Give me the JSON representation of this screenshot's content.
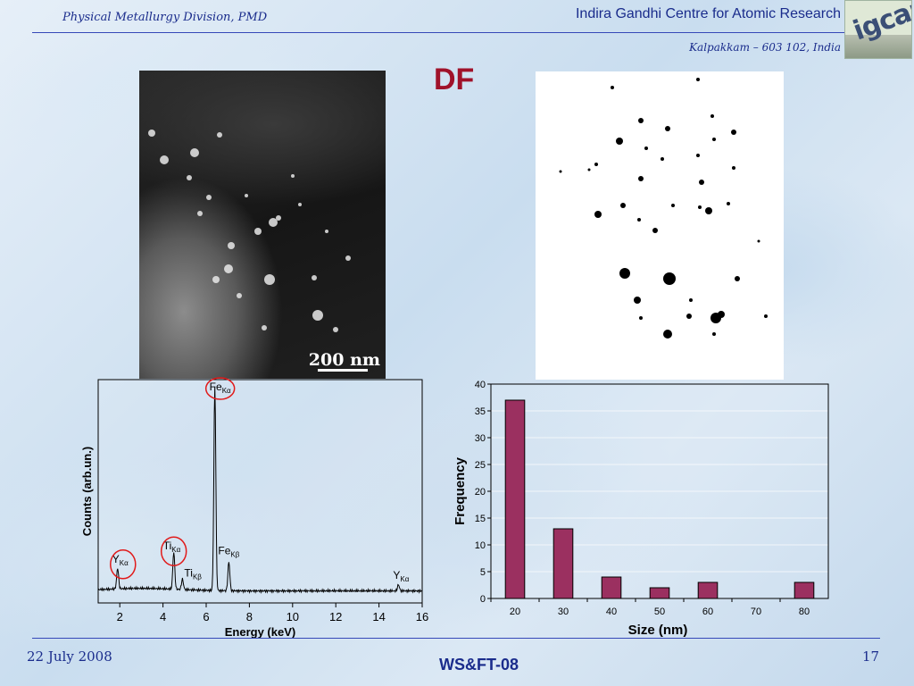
{
  "header": {
    "division": "Physical Metallurgy Division, PMD",
    "institute": "Indira Gandhi Centre for Atomic Research",
    "location": "Kalpakkam – 603 102, India",
    "logo_text": "igcar"
  },
  "slide": {
    "title": "DF",
    "tem_scale_label": "200 nm"
  },
  "footer": {
    "date": "22 July 2008",
    "event": "WS&FT-08",
    "page": "17"
  },
  "colors": {
    "title": "#a0122a",
    "header_text": "#1a2c8c",
    "bar_fill": "#9b3060",
    "highlight_circle": "#e11a1a"
  },
  "chart_data": [
    {
      "type": "line",
      "xlabel": "Energy (keV)",
      "ylabel": "Counts (arb.un.)",
      "xlim": [
        1,
        16
      ],
      "x_ticks": [
        2,
        4,
        6,
        8,
        10,
        12,
        14,
        16
      ],
      "grid": false,
      "peaks": [
        {
          "element": "Y",
          "line": "Kα",
          "energy": 1.9,
          "height": 0.1,
          "circled": true
        },
        {
          "element": "Ti",
          "line": "Kα",
          "energy": 4.5,
          "height": 0.18,
          "circled": true
        },
        {
          "element": "Ti",
          "line": "Kβ",
          "energy": 4.9,
          "height": 0.05,
          "circled": false
        },
        {
          "element": "Fe",
          "line": "Kα",
          "energy": 6.4,
          "height": 1.0,
          "circled": true
        },
        {
          "element": "Fe",
          "line": "Kβ",
          "energy": 7.05,
          "height": 0.14,
          "circled": false
        },
        {
          "element": "Y",
          "line": "Kα",
          "energy": 14.9,
          "height": 0.03,
          "circled": false
        }
      ]
    },
    {
      "type": "bar",
      "xlabel": "Size (nm)",
      "ylabel": "Frequency",
      "categories": [
        "20",
        "30",
        "40",
        "50",
        "60",
        "70",
        "80"
      ],
      "values": [
        37,
        13,
        4,
        2,
        3,
        0,
        3
      ],
      "ylim": [
        0,
        40
      ],
      "y_ticks": [
        0,
        5,
        10,
        15,
        20,
        25,
        30,
        35,
        40
      ],
      "grid": true
    }
  ]
}
